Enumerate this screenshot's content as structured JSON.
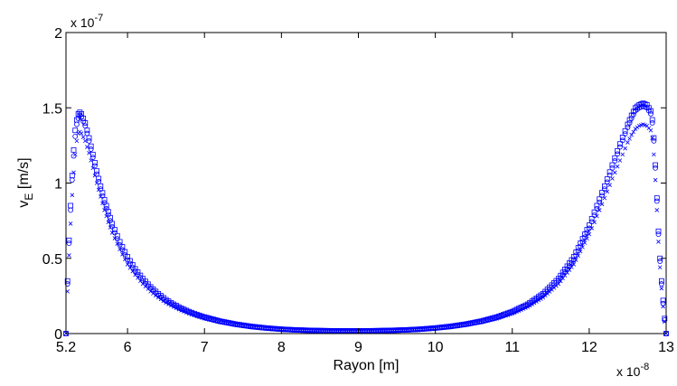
{
  "chart_data": {
    "type": "scatter",
    "title": "",
    "xlabel": "Rayon [m]",
    "ylabel_main": "v",
    "ylabel_sub": "E",
    "ylabel_unit": " [m/s]",
    "x_multiplier": "x 10",
    "x_exponent": "-8",
    "y_multiplier": "x 10",
    "y_exponent": "-7",
    "xlim": [
      5.2,
      13
    ],
    "ylim": [
      0,
      2
    ],
    "x_ticks": [
      {
        "value": 5.2,
        "label": "5.2"
      },
      {
        "value": 6,
        "label": "6"
      },
      {
        "value": 7,
        "label": "7"
      },
      {
        "value": 8,
        "label": "8"
      },
      {
        "value": 9,
        "label": "9"
      },
      {
        "value": 10,
        "label": "10"
      },
      {
        "value": 11,
        "label": "11"
      },
      {
        "value": 12,
        "label": "12"
      },
      {
        "value": 13,
        "label": "13"
      }
    ],
    "y_ticks": [
      {
        "value": 0,
        "label": "0"
      },
      {
        "value": 0.5,
        "label": "0.5"
      },
      {
        "value": 1,
        "label": "1"
      },
      {
        "value": 1.5,
        "label": "1.5"
      },
      {
        "value": 2,
        "label": "2"
      }
    ],
    "grid": false,
    "marker_color": "#0000ff",
    "series": [
      {
        "marker": "square",
        "x": [
          5.2,
          5.22,
          5.24,
          5.26,
          5.28,
          5.3,
          5.32,
          5.34,
          5.36,
          5.38,
          5.4,
          5.45,
          5.5,
          5.55,
          5.6,
          5.65,
          5.7,
          5.75,
          5.8,
          5.9,
          6.0,
          6.1,
          6.2,
          6.3,
          6.4,
          6.5,
          6.6,
          6.7,
          6.8,
          6.9,
          7.0,
          7.2,
          7.4,
          7.6,
          7.8,
          8.0,
          8.2,
          8.4,
          8.6,
          8.8,
          9.0,
          9.2,
          9.4,
          9.6,
          9.8,
          10.0,
          10.2,
          10.4,
          10.6,
          10.8,
          11.0,
          11.2,
          11.4,
          11.6,
          11.8,
          12.0,
          12.1,
          12.2,
          12.3,
          12.4,
          12.5,
          12.55,
          12.6,
          12.65,
          12.7,
          12.75,
          12.8,
          12.82,
          12.84,
          12.86,
          12.88,
          12.9,
          12.92,
          12.94,
          12.96,
          12.98,
          13.0
        ],
        "y": [
          0.0,
          0.35,
          0.62,
          0.85,
          1.05,
          1.22,
          1.35,
          1.42,
          1.46,
          1.47,
          1.46,
          1.4,
          1.3,
          1.19,
          1.08,
          0.98,
          0.89,
          0.81,
          0.73,
          0.61,
          0.51,
          0.43,
          0.365,
          0.31,
          0.265,
          0.225,
          0.195,
          0.168,
          0.146,
          0.127,
          0.11,
          0.083,
          0.063,
          0.048,
          0.037,
          0.029,
          0.024,
          0.021,
          0.019,
          0.018,
          0.018,
          0.019,
          0.021,
          0.024,
          0.029,
          0.037,
          0.048,
          0.063,
          0.083,
          0.11,
          0.146,
          0.195,
          0.265,
          0.365,
          0.51,
          0.72,
          0.85,
          0.98,
          1.12,
          1.26,
          1.39,
          1.45,
          1.5,
          1.52,
          1.53,
          1.52,
          1.48,
          1.42,
          1.3,
          1.12,
          0.9,
          0.68,
          0.5,
          0.35,
          0.22,
          0.1,
          0.0
        ]
      },
      {
        "marker": "circle",
        "x": [
          5.2,
          5.22,
          5.24,
          5.26,
          5.28,
          5.3,
          5.32,
          5.34,
          5.36,
          5.38,
          5.4,
          5.45,
          5.5,
          5.55,
          5.6,
          5.65,
          5.7,
          5.75,
          5.8,
          5.9,
          6.0,
          6.1,
          6.2,
          6.3,
          6.4,
          6.5,
          6.6,
          6.7,
          6.8,
          6.9,
          7.0,
          7.2,
          7.4,
          7.6,
          7.8,
          8.0,
          8.2,
          8.4,
          8.6,
          8.8,
          9.0,
          9.2,
          9.4,
          9.6,
          9.8,
          10.0,
          10.2,
          10.4,
          10.6,
          10.8,
          11.0,
          11.2,
          11.4,
          11.6,
          11.8,
          12.0,
          12.1,
          12.2,
          12.3,
          12.4,
          12.5,
          12.55,
          12.6,
          12.65,
          12.7,
          12.75,
          12.8,
          12.82,
          12.84,
          12.86,
          12.88,
          12.9,
          12.92,
          12.94,
          12.96,
          12.98,
          13.0
        ],
        "y": [
          0.0,
          0.33,
          0.6,
          0.82,
          1.02,
          1.18,
          1.31,
          1.39,
          1.43,
          1.45,
          1.44,
          1.38,
          1.28,
          1.17,
          1.06,
          0.96,
          0.87,
          0.79,
          0.71,
          0.59,
          0.49,
          0.415,
          0.35,
          0.3,
          0.255,
          0.217,
          0.188,
          0.162,
          0.141,
          0.122,
          0.106,
          0.08,
          0.061,
          0.046,
          0.036,
          0.028,
          0.023,
          0.02,
          0.018,
          0.017,
          0.017,
          0.018,
          0.02,
          0.023,
          0.028,
          0.036,
          0.046,
          0.061,
          0.08,
          0.106,
          0.141,
          0.188,
          0.255,
          0.35,
          0.49,
          0.7,
          0.83,
          0.96,
          1.1,
          1.24,
          1.37,
          1.43,
          1.48,
          1.5,
          1.51,
          1.5,
          1.46,
          1.4,
          1.28,
          1.1,
          0.88,
          0.66,
          0.48,
          0.33,
          0.2,
          0.09,
          0.0
        ]
      },
      {
        "marker": "cross",
        "x": [
          5.2,
          5.22,
          5.24,
          5.26,
          5.28,
          5.3,
          5.32,
          5.34,
          5.36,
          5.38,
          5.4,
          5.45,
          5.5,
          5.55,
          5.6,
          5.65,
          5.7,
          5.75,
          5.8,
          5.9,
          6.0,
          6.1,
          6.2,
          6.3,
          6.4,
          6.5,
          6.6,
          6.7,
          6.8,
          6.9,
          7.0,
          7.2,
          7.4,
          7.6,
          7.8,
          8.0,
          8.2,
          8.4,
          8.6,
          8.8,
          9.0,
          9.2,
          9.4,
          9.6,
          9.8,
          10.0,
          10.2,
          10.4,
          10.6,
          10.8,
          11.0,
          11.2,
          11.4,
          11.6,
          11.8,
          12.0,
          12.1,
          12.2,
          12.3,
          12.4,
          12.5,
          12.55,
          12.6,
          12.65,
          12.7,
          12.75,
          12.8,
          12.82,
          12.84,
          12.86,
          12.88,
          12.9,
          12.92,
          12.94,
          12.96,
          12.98,
          13.0
        ],
        "y": [
          0.0,
          0.28,
          0.52,
          0.73,
          0.92,
          1.07,
          1.19,
          1.28,
          1.33,
          1.34,
          1.33,
          1.28,
          1.2,
          1.1,
          1.0,
          0.91,
          0.82,
          0.74,
          0.67,
          0.56,
          0.46,
          0.39,
          0.33,
          0.28,
          0.24,
          0.205,
          0.177,
          0.153,
          0.133,
          0.115,
          0.1,
          0.076,
          0.058,
          0.044,
          0.034,
          0.027,
          0.022,
          0.019,
          0.017,
          0.016,
          0.016,
          0.017,
          0.019,
          0.022,
          0.027,
          0.034,
          0.044,
          0.058,
          0.076,
          0.1,
          0.133,
          0.177,
          0.24,
          0.33,
          0.46,
          0.66,
          0.78,
          0.9,
          1.03,
          1.15,
          1.27,
          1.32,
          1.36,
          1.38,
          1.39,
          1.38,
          1.35,
          1.3,
          1.19,
          1.02,
          0.82,
          0.61,
          0.44,
          0.3,
          0.18,
          0.08,
          0.0
        ]
      }
    ]
  }
}
